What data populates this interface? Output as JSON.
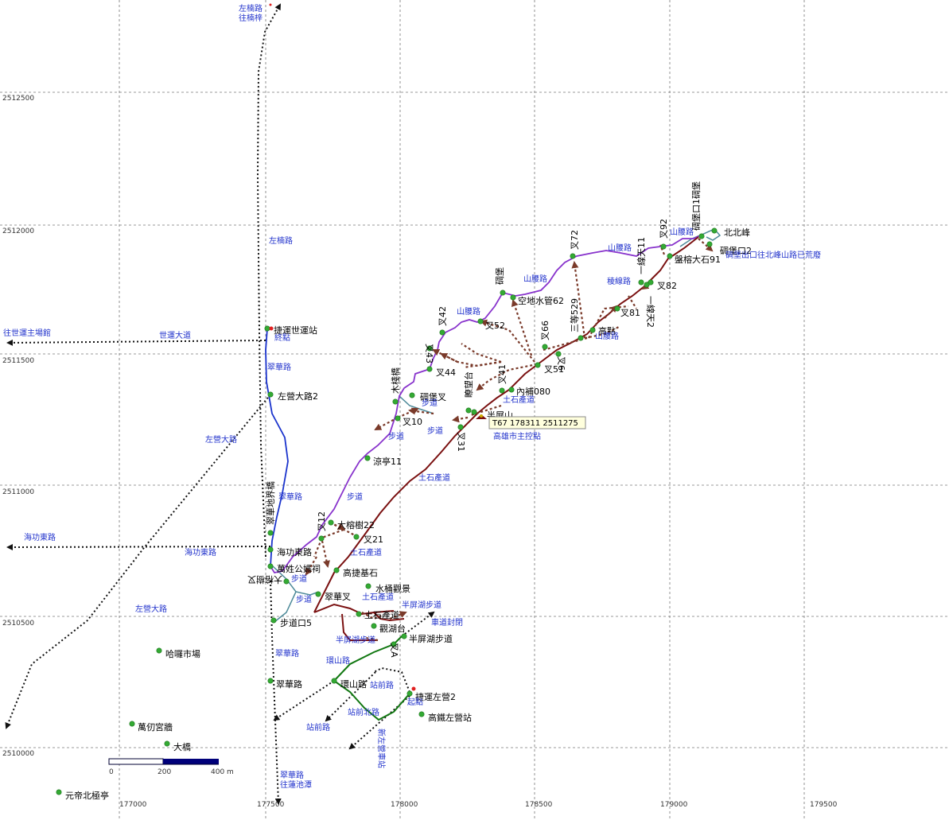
{
  "grid": {
    "x_labels": [
      "177000",
      "177500",
      "178000",
      "178500",
      "179000",
      "179500"
    ],
    "y_labels": [
      "2512500",
      "2512000",
      "2511500",
      "2511000",
      "2510500",
      "2510000"
    ]
  },
  "scale_bar": {
    "labels": [
      "0",
      "200",
      "400 m"
    ]
  },
  "cursor_tooltip": "T67  178311  2511275",
  "colors": {
    "grid": "#888888",
    "purple_trail": "#8833cc",
    "dark_red_trail": "#7a1010",
    "blue_trail": "#1a33cc",
    "green_trail": "#117711",
    "teal_trail": "#4d8a99",
    "black_dotted": "#111111",
    "brown_arrow": "#7a3a2a",
    "waypoint": "#33aa33",
    "road_text": "#2233cc"
  },
  "waypoints": [
    {
      "name": "北北峰",
      "label": "北北峰"
    },
    {
      "name": "碉堡口2",
      "label": "碉堡口2"
    },
    {
      "name": "碉堡口",
      "label": "碉堡口1碉堡"
    },
    {
      "name": "盤榕大石91",
      "label": "盤榕大石91"
    },
    {
      "name": "叉92",
      "label": "叉92"
    },
    {
      "name": "叉82",
      "label": "叉82"
    },
    {
      "name": "叉81",
      "label": "叉81"
    },
    {
      "name": "一線天2",
      "label": "一線天2"
    },
    {
      "name": "一線天11",
      "label": "一線天11"
    },
    {
      "name": "叉72",
      "label": "叉72"
    },
    {
      "name": "高點",
      "label": "高點"
    },
    {
      "name": "三等529",
      "label": "三等529"
    },
    {
      "name": "叉66",
      "label": "叉66"
    },
    {
      "name": "空地水管62",
      "label": "空地水管62"
    },
    {
      "name": "碉堡",
      "label": "碉堡"
    },
    {
      "name": "叉52",
      "label": "叉52"
    },
    {
      "name": "叉51",
      "label": "叉51"
    },
    {
      "name": "叉6",
      "label": "叉6"
    },
    {
      "name": "叉42",
      "label": "叉42"
    },
    {
      "name": "叉43",
      "label": "叉43"
    },
    {
      "name": "叉44",
      "label": "叉44"
    },
    {
      "name": "叉41",
      "label": "叉41"
    },
    {
      "name": "內補080",
      "label": "內補080"
    },
    {
      "name": "半屏山",
      "label": "半屏山"
    },
    {
      "name": "瞭望台",
      "label": "瞭望台"
    },
    {
      "name": "碉堡叉",
      "label": "碉堡叉"
    },
    {
      "name": "叉31",
      "label": "叉31"
    },
    {
      "name": "叉10",
      "label": "叉10"
    },
    {
      "name": "木棧橋",
      "label": "木棧橋"
    },
    {
      "name": "涼亭11",
      "label": "涼亭11"
    },
    {
      "name": "捷運世運站",
      "label": "捷運世運站"
    },
    {
      "name": "左營大路2",
      "label": "左營大路2"
    },
    {
      "name": "翠華地界橋",
      "label": "翠華地界橋"
    },
    {
      "name": "海功東路",
      "label": "海功東路"
    },
    {
      "name": "萬姓公媽祠",
      "label": "萬姓公媽祠"
    },
    {
      "name": "大榕樹22",
      "label": "大榕樹22"
    },
    {
      "name": "叉21",
      "label": "叉21"
    },
    {
      "name": "叉12",
      "label": "叉12"
    },
    {
      "name": "高捷基石",
      "label": "高捷基石"
    },
    {
      "name": "大榕樹叉",
      "label": "大榕樹叉"
    },
    {
      "name": "翠華叉",
      "label": "翠華叉"
    },
    {
      "name": "水桶觀景",
      "label": "水桶觀景"
    },
    {
      "name": "步道口5",
      "label": "步道口5"
    },
    {
      "name": "土石產道",
      "label": "土石產道"
    },
    {
      "name": "觀湖台",
      "label": "觀湖台"
    },
    {
      "name": "半屏湖步道",
      "label": "半屏湖步道"
    },
    {
      "name": "叉A",
      "label": "叉A"
    },
    {
      "name": "環山路",
      "label": "環山路"
    },
    {
      "name": "翠華路",
      "label": "翠華路"
    },
    {
      "name": "捷運左營2",
      "label": "捷運左營2"
    },
    {
      "name": "高鐵左營站",
      "label": "高鐵左營站"
    },
    {
      "name": "哈囉市場",
      "label": "哈囉市場"
    },
    {
      "name": "萬仞宮牆",
      "label": "萬仞宮牆"
    },
    {
      "name": "大橋",
      "label": "大橋"
    },
    {
      "name": "元帝北極亭",
      "label": "元帝北極亭"
    }
  ],
  "road_labels": [
    {
      "label": "左楠路\n往楠梓"
    },
    {
      "label": "左楠路"
    },
    {
      "label": "往世運主場館"
    },
    {
      "label": "世運大道"
    },
    {
      "label": "終點"
    },
    {
      "label": "翠華路"
    },
    {
      "label": "左營大路"
    },
    {
      "label": "翠華路"
    },
    {
      "label": "海功東路"
    },
    {
      "label": "海功東路"
    },
    {
      "label": "左營大路"
    },
    {
      "label": "翠華路"
    },
    {
      "label": "翠華路\n往蓮池潭"
    },
    {
      "label": "山腰路"
    },
    {
      "label": "山腰路"
    },
    {
      "label": "山腰路"
    },
    {
      "label": "稜線路"
    },
    {
      "label": "山腰路"
    },
    {
      "label": "山腰路"
    },
    {
      "label": "碉堡出口往北峰山路已荒廢"
    },
    {
      "label": "步道"
    },
    {
      "label": "步道"
    },
    {
      "label": "步道"
    },
    {
      "label": "步道"
    },
    {
      "label": "步道"
    },
    {
      "label": "步道"
    },
    {
      "label": "土石產道"
    },
    {
      "label": "土石產道"
    },
    {
      "label": "土石產道"
    },
    {
      "label": "土石產道"
    },
    {
      "label": "高雄市主控點"
    },
    {
      "label": "半屏湖步道"
    },
    {
      "label": "車道封閉"
    },
    {
      "label": "半屏湖步道"
    },
    {
      "label": "環山路"
    },
    {
      "label": "站前路"
    },
    {
      "label": "起點"
    },
    {
      "label": "站前北路"
    },
    {
      "label": "站前路"
    },
    {
      "label": "新左營車站"
    }
  ]
}
